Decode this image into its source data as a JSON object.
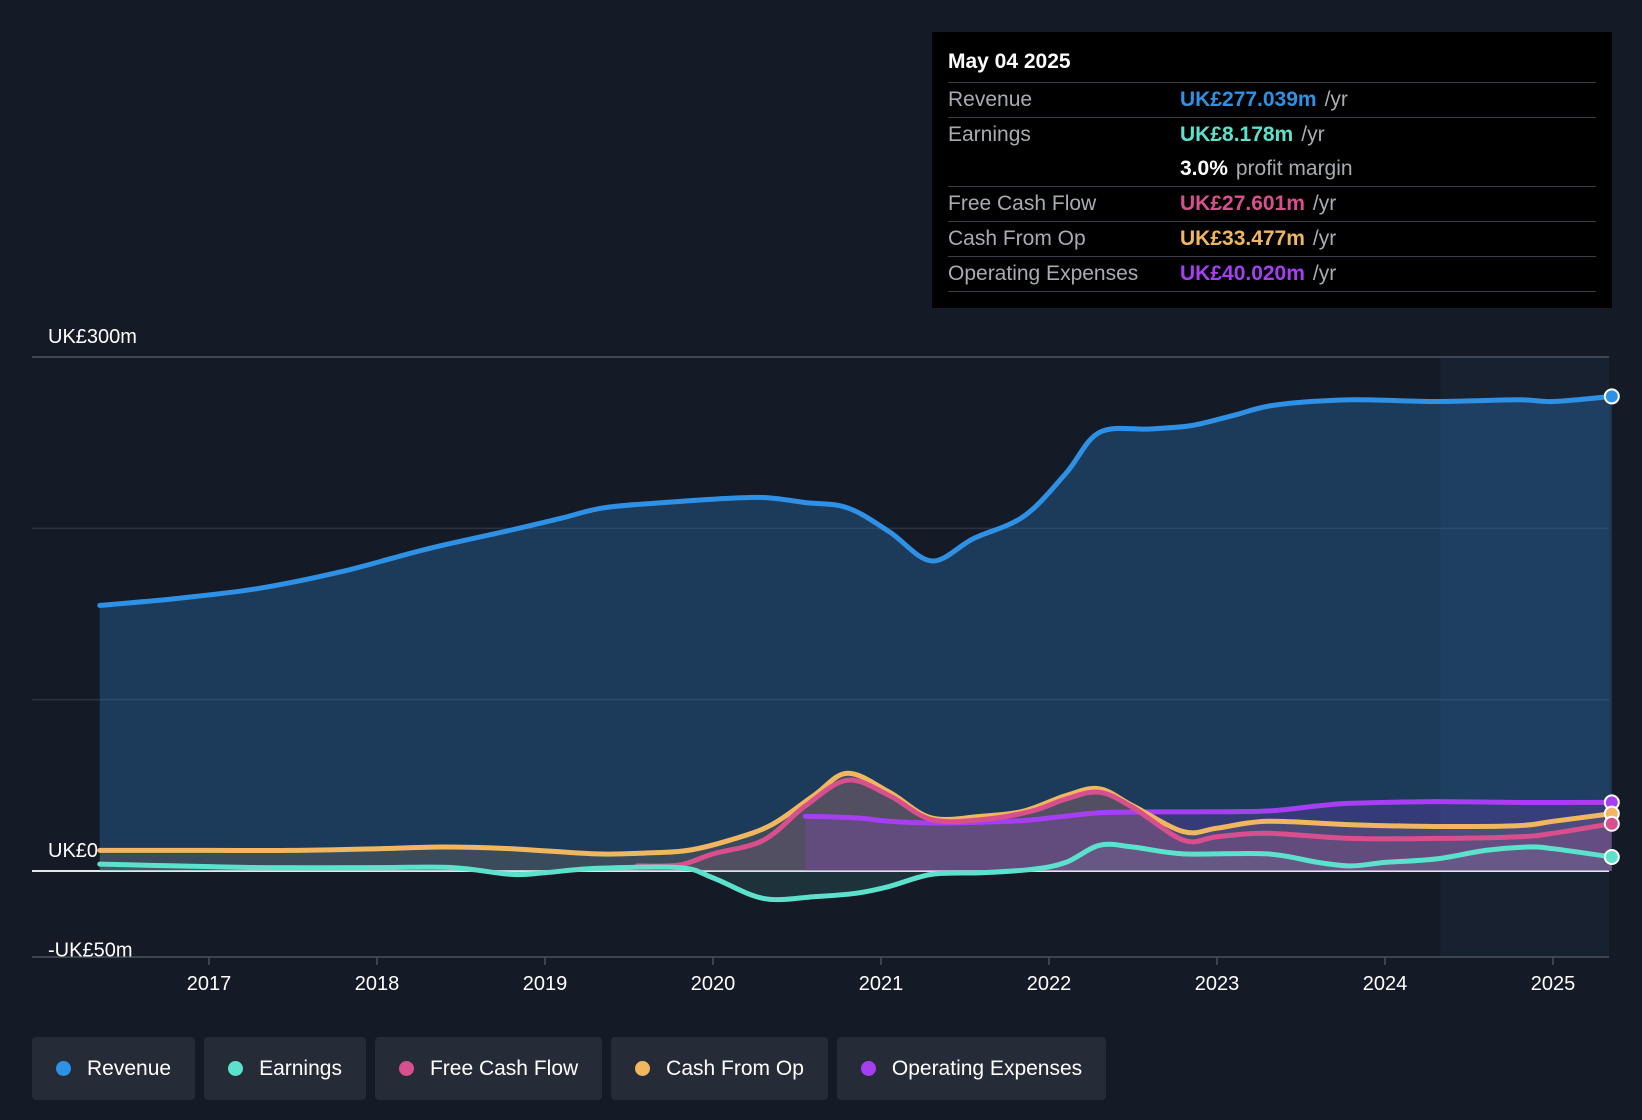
{
  "chart_data": {
    "type": "line",
    "y_axis": {
      "min": -50,
      "max": 300,
      "labels": [
        "UK£300m",
        "UK£0",
        "-UK£50m"
      ]
    },
    "x_ticks": [
      "2017",
      "2018",
      "2019",
      "2020",
      "2021",
      "2022",
      "2023",
      "2024",
      "2025"
    ],
    "forecast_start": 2024.33,
    "series": [
      {
        "name": "Revenue",
        "color": "#2e91e5",
        "points": [
          [
            2016.35,
            155
          ],
          [
            2016.8,
            159
          ],
          [
            2017.3,
            165
          ],
          [
            2017.8,
            175
          ],
          [
            2018.3,
            188
          ],
          [
            2018.8,
            199
          ],
          [
            2019.1,
            206
          ],
          [
            2019.35,
            212
          ],
          [
            2019.7,
            215
          ],
          [
            2020.0,
            217
          ],
          [
            2020.3,
            218
          ],
          [
            2020.55,
            215
          ],
          [
            2020.8,
            212
          ],
          [
            2021.05,
            198
          ],
          [
            2021.3,
            181
          ],
          [
            2021.55,
            194
          ],
          [
            2021.85,
            207
          ],
          [
            2022.1,
            232
          ],
          [
            2022.3,
            256
          ],
          [
            2022.6,
            258
          ],
          [
            2022.85,
            260
          ],
          [
            2023.1,
            266
          ],
          [
            2023.35,
            272
          ],
          [
            2023.8,
            275
          ],
          [
            2024.3,
            274
          ],
          [
            2024.8,
            275
          ],
          [
            2025.0,
            274
          ],
          [
            2025.35,
            277
          ]
        ]
      },
      {
        "name": "Earnings",
        "color": "#5ce1cc",
        "points": [
          [
            2016.35,
            4
          ],
          [
            2016.8,
            3
          ],
          [
            2017.3,
            2
          ],
          [
            2018.0,
            2
          ],
          [
            2018.45,
            2
          ],
          [
            2018.8,
            -2
          ],
          [
            2019.0,
            -1
          ],
          [
            2019.3,
            1.5
          ],
          [
            2019.8,
            2
          ],
          [
            2020.0,
            -4
          ],
          [
            2020.3,
            -16
          ],
          [
            2020.6,
            -15
          ],
          [
            2020.85,
            -13
          ],
          [
            2021.05,
            -9
          ],
          [
            2021.3,
            -2
          ],
          [
            2021.6,
            -1
          ],
          [
            2021.9,
            1
          ],
          [
            2022.1,
            5
          ],
          [
            2022.3,
            15
          ],
          [
            2022.5,
            14
          ],
          [
            2022.8,
            10
          ],
          [
            2023.3,
            10
          ],
          [
            2023.6,
            5
          ],
          [
            2023.8,
            3
          ],
          [
            2024.0,
            5
          ],
          [
            2024.3,
            7
          ],
          [
            2024.6,
            12
          ],
          [
            2024.85,
            14
          ],
          [
            2025.0,
            13
          ],
          [
            2025.35,
            8.178
          ]
        ]
      },
      {
        "name": "Free Cash Flow",
        "color": "#d84f8e",
        "points": [
          [
            2019.55,
            3
          ],
          [
            2019.8,
            3.5
          ],
          [
            2020.0,
            10
          ],
          [
            2020.3,
            18
          ],
          [
            2020.55,
            38
          ],
          [
            2020.8,
            53
          ],
          [
            2021.05,
            44
          ],
          [
            2021.3,
            30
          ],
          [
            2021.6,
            30
          ],
          [
            2021.9,
            35
          ],
          [
            2022.1,
            42
          ],
          [
            2022.3,
            46
          ],
          [
            2022.5,
            37
          ],
          [
            2022.8,
            18
          ],
          [
            2023.0,
            20
          ],
          [
            2023.3,
            22
          ],
          [
            2023.8,
            19
          ],
          [
            2024.3,
            19
          ],
          [
            2024.8,
            20
          ],
          [
            2025.0,
            22
          ],
          [
            2025.35,
            27.601
          ]
        ]
      },
      {
        "name": "Cash From Op",
        "color": "#f0b760",
        "points": [
          [
            2016.35,
            12
          ],
          [
            2017.0,
            12
          ],
          [
            2017.5,
            12
          ],
          [
            2018.0,
            13
          ],
          [
            2018.4,
            14
          ],
          [
            2018.8,
            13
          ],
          [
            2019.3,
            10
          ],
          [
            2019.6,
            10.5
          ],
          [
            2019.85,
            12
          ],
          [
            2020.1,
            18
          ],
          [
            2020.35,
            27
          ],
          [
            2020.6,
            44
          ],
          [
            2020.8,
            57
          ],
          [
            2021.05,
            46
          ],
          [
            2021.3,
            31
          ],
          [
            2021.6,
            32
          ],
          [
            2021.85,
            35
          ],
          [
            2022.1,
            44
          ],
          [
            2022.3,
            48
          ],
          [
            2022.5,
            38
          ],
          [
            2022.8,
            23
          ],
          [
            2023.0,
            25
          ],
          [
            2023.3,
            29
          ],
          [
            2023.8,
            27
          ],
          [
            2024.3,
            26
          ],
          [
            2024.8,
            26.5
          ],
          [
            2025.0,
            29
          ],
          [
            2025.35,
            33.477
          ]
        ]
      },
      {
        "name": "Operating Expenses",
        "color": "#a63ff2",
        "points": [
          [
            2020.55,
            32
          ],
          [
            2020.85,
            31
          ],
          [
            2021.05,
            29
          ],
          [
            2021.3,
            28
          ],
          [
            2021.6,
            28.5
          ],
          [
            2021.85,
            29.5
          ],
          [
            2022.1,
            32
          ],
          [
            2022.3,
            34
          ],
          [
            2022.6,
            34.5
          ],
          [
            2022.85,
            34.5
          ],
          [
            2023.3,
            35
          ],
          [
            2023.6,
            38
          ],
          [
            2023.8,
            39.5
          ],
          [
            2024.3,
            40.5
          ],
          [
            2024.8,
            40
          ],
          [
            2025.35,
            40.02
          ]
        ]
      }
    ]
  },
  "tooltip": {
    "date": "May 04 2025",
    "rows": [
      {
        "label": "Revenue",
        "value": "UK£277.039m",
        "unit": "/yr",
        "color": "#2e91e5"
      },
      {
        "label": "Earnings",
        "value": "UK£8.178m",
        "unit": "/yr",
        "color": "#5ce1cc"
      },
      {
        "label": "",
        "value": "3.0%",
        "unit": "profit margin",
        "color": "#ffffff"
      },
      {
        "label": "Free Cash Flow",
        "value": "UK£27.601m",
        "unit": "/yr",
        "color": "#d84f8e"
      },
      {
        "label": "Cash From Op",
        "value": "UK£33.477m",
        "unit": "/yr",
        "color": "#f0b760"
      },
      {
        "label": "Operating Expenses",
        "value": "UK£40.020m",
        "unit": "/yr",
        "color": "#a63ff2"
      }
    ]
  },
  "legend": [
    {
      "label": "Revenue",
      "color": "#2e91e5"
    },
    {
      "label": "Earnings",
      "color": "#5ce1cc"
    },
    {
      "label": "Free Cash Flow",
      "color": "#d84f8e"
    },
    {
      "label": "Cash From Op",
      "color": "#f0b760"
    },
    {
      "label": "Operating Expenses",
      "color": "#a63ff2"
    }
  ]
}
